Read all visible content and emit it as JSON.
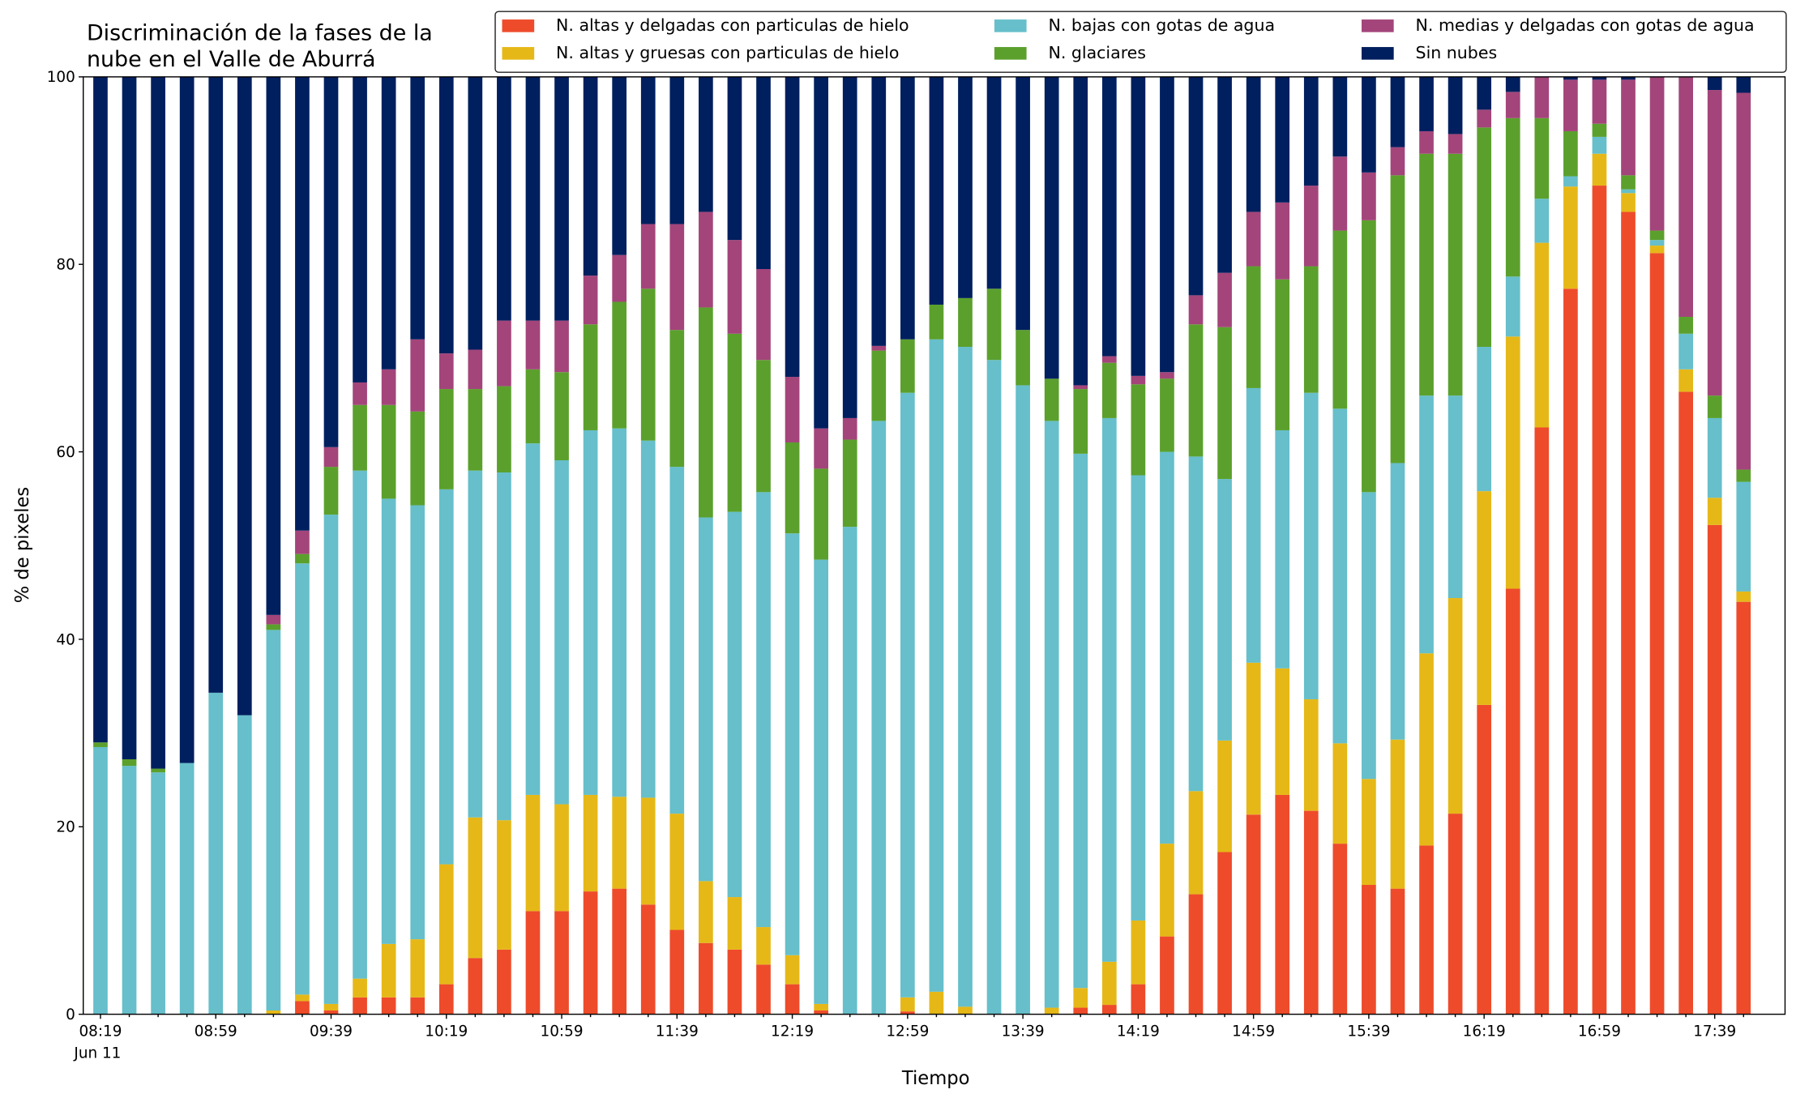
{
  "chart_data": {
    "type": "stacked_bar",
    "title": [
      "Discriminación de la fases de la",
      "nube en el Valle de Aburrá"
    ],
    "xlabel": "Tiempo",
    "ylabel": "% de pixeles",
    "x_date_label": "Jun 11",
    "categories": [
      "08:19",
      null,
      null,
      null,
      "08:59",
      null,
      null,
      null,
      "09:39",
      null,
      null,
      null,
      "10:19",
      null,
      null,
      null,
      "10:59",
      null,
      null,
      null,
      "11:39",
      null,
      null,
      null,
      "12:19",
      null,
      null,
      null,
      "12:59",
      null,
      null,
      null,
      "13:39",
      null,
      null,
      null,
      "14:19",
      null,
      null,
      null,
      "14:59",
      null,
      null,
      null,
      "15:39",
      null,
      null,
      null,
      "16:19",
      null,
      null,
      null,
      "16:59",
      null,
      null,
      null,
      "17:39",
      null
    ],
    "series": [
      {
        "name": "N. altas y delgadas con particulas de hielo",
        "color": "#ee4b2b",
        "values": [
          0,
          0,
          0,
          0,
          0,
          0,
          0,
          1.4,
          0.4,
          1.8,
          1.8,
          1.8,
          3.2,
          6,
          6.9,
          11,
          11,
          13.1,
          13.4,
          11.7,
          9,
          7.6,
          6.9,
          5.3,
          3.2,
          0.4,
          0,
          0,
          0.3,
          0,
          0,
          0,
          0,
          0,
          0.7,
          1,
          3.2,
          8.3,
          12.8,
          17.3,
          21.3,
          23.4,
          21.7,
          18.2,
          13.8,
          13.4,
          18,
          21.4,
          33,
          45.4,
          62.6,
          77.4,
          88.4,
          85.6,
          81.2,
          66.4,
          52.2,
          44
        ]
      },
      {
        "name": "N. altas y gruesas con particulas de hielo",
        "color": "#e6b817",
        "values": [
          0,
          0,
          0,
          0,
          0,
          0,
          0.4,
          0.7,
          0.7,
          2,
          5.7,
          6.2,
          12.8,
          15,
          13.8,
          12.4,
          11.4,
          10.3,
          9.8,
          11.4,
          12.4,
          6.6,
          5.6,
          4,
          3.1,
          0.7,
          0,
          0,
          1.5,
          2.4,
          0.8,
          0,
          0,
          0.7,
          2.1,
          4.6,
          6.8,
          9.9,
          11,
          11.9,
          16.2,
          13.5,
          11.9,
          10.7,
          11.3,
          15.9,
          20.5,
          23,
          22.8,
          26.9,
          19.7,
          10.9,
          3.4,
          2,
          0.8,
          2.4,
          2.9,
          1.1
        ]
      },
      {
        "name": "N. bajas con gotas de agua",
        "color": "#66bfca",
        "values": [
          28.5,
          26.5,
          25.8,
          26.8,
          34.3,
          31.9,
          40.6,
          46,
          52.2,
          54.2,
          47.5,
          46.3,
          40,
          37,
          37.1,
          37.5,
          36.7,
          38.9,
          39.3,
          38.1,
          37,
          38.8,
          41.1,
          46.4,
          45,
          47.4,
          52,
          63.3,
          64.5,
          69.6,
          70.4,
          69.8,
          67.1,
          62.6,
          57,
          58,
          47.5,
          41.8,
          35.7,
          27.9,
          29.3,
          25.4,
          32.7,
          35.7,
          30.6,
          29.5,
          27.5,
          21.6,
          15.4,
          6.4,
          4.7,
          1.1,
          1.8,
          0.4,
          0.6,
          3.8,
          8.5,
          11.7
        ]
      },
      {
        "name": "N. glaciares",
        "color": "#5ba02c",
        "values": [
          0.5,
          0.7,
          0.4,
          0,
          0,
          0,
          0.6,
          1,
          5.1,
          7,
          10,
          10,
          10.7,
          8.7,
          9.2,
          7.9,
          9.4,
          11.3,
          13.5,
          16.2,
          14.6,
          22.4,
          19,
          14.1,
          9.7,
          9.7,
          9.3,
          7.5,
          5.7,
          3.7,
          5.2,
          7.6,
          5.9,
          4.5,
          6.9,
          5.9,
          9.7,
          7.8,
          14.1,
          16.2,
          13,
          16.1,
          13.5,
          19,
          29,
          30.7,
          25.8,
          25.8,
          23.4,
          16.9,
          8.6,
          4.8,
          1.4,
          1.5,
          1,
          1.8,
          2.4,
          1.3
        ]
      },
      {
        "name": "N. medias y delgadas con gotas de agua",
        "color": "#a3457a",
        "values": [
          0,
          0,
          0,
          0,
          0,
          0,
          1,
          2.5,
          2.1,
          2.4,
          3.8,
          7.7,
          3.8,
          4.2,
          7,
          5.2,
          5.5,
          5.2,
          5,
          6.9,
          11.3,
          10.2,
          10,
          9.7,
          7,
          4.3,
          2.3,
          0.5,
          0,
          0,
          0,
          0,
          0,
          0,
          0.4,
          0.7,
          0.9,
          0.7,
          3.1,
          5.8,
          5.8,
          8.2,
          8.6,
          7.9,
          5.1,
          3,
          2.4,
          2.1,
          1.9,
          2.8,
          4.4,
          5.5,
          4.7,
          10.2,
          16.4,
          25.6,
          32.6,
          40.2
        ]
      },
      {
        "name": "Sin nubes",
        "color": "#001f5f",
        "values": [
          71,
          72.8,
          73.8,
          73.2,
          65.7,
          68.1,
          57.4,
          48.4,
          39.5,
          32.6,
          31.2,
          28,
          29.5,
          29.1,
          26,
          26,
          26,
          21.2,
          19,
          15.7,
          15.7,
          14.4,
          17.4,
          20.5,
          32,
          37.5,
          36.4,
          28.7,
          28,
          24.3,
          23.6,
          22.6,
          27,
          32.2,
          32.9,
          29.8,
          31.9,
          31.5,
          23.3,
          20.9,
          14.4,
          13.4,
          11.6,
          8.5,
          10.2,
          7.5,
          5.8,
          6.1,
          3.5,
          1.6,
          0,
          0.3,
          0.3,
          0.3,
          0,
          0,
          1.4,
          1.7
        ]
      }
    ],
    "ylim": [
      0,
      100
    ],
    "yticks": [
      0,
      20,
      40,
      60,
      80,
      100
    ],
    "legend": "upper right"
  }
}
